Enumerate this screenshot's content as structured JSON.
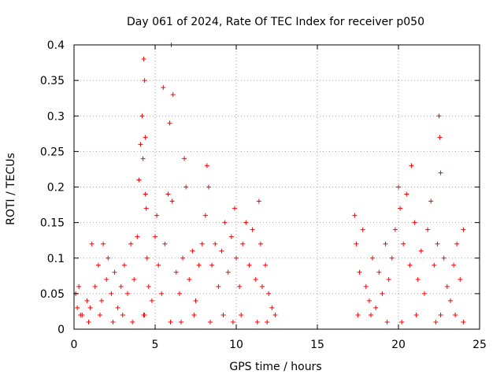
{
  "chart_data": {
    "type": "scatter",
    "title": "Day 061 of 2024, Rate Of TEC Index for receiver p050",
    "xlabel": "GPS time / hours",
    "ylabel": "ROTI / TECUs",
    "xlim": [
      0,
      25
    ],
    "ylim": [
      0,
      0.4
    ],
    "xticks": [
      0,
      5,
      10,
      15,
      20,
      25
    ],
    "xtick_labels": [
      "0",
      "5",
      "10",
      "15",
      "20",
      "25"
    ],
    "yticks": [
      0,
      0.05,
      0.1,
      0.15,
      0.2,
      0.25,
      0.3,
      0.35,
      0.4
    ],
    "ytick_labels": [
      "0",
      "0.05",
      "0.1",
      "0.15",
      "0.2",
      "0.25",
      "0.3",
      "0.35",
      "0.4"
    ],
    "grid": true,
    "marker": "+",
    "color": "#ff0000",
    "series": [
      {
        "name": "ROTI",
        "x": [
          0.1,
          0.2,
          0.3,
          0.5,
          0.8,
          1.0,
          1.1,
          1.3,
          1.5,
          1.7,
          1.8,
          2.0,
          2.1,
          2.3,
          2.5,
          2.7,
          2.9,
          3.1,
          3.3,
          3.5,
          3.7,
          3.9,
          4.0,
          4.1,
          4.2,
          4.25,
          4.3,
          4.35,
          4.4,
          4.45,
          4.5,
          4.6,
          4.8,
          5.0,
          5.1,
          5.2,
          5.4,
          5.6,
          5.8,
          5.9,
          6.0,
          6.1,
          6.3,
          6.5,
          6.7,
          6.8,
          6.9,
          7.1,
          7.3,
          7.5,
          7.7,
          7.9,
          8.1,
          8.2,
          8.3,
          8.5,
          8.7,
          8.9,
          9.1,
          9.3,
          9.5,
          9.7,
          9.9,
          10.0,
          10.2,
          10.4,
          10.6,
          10.8,
          11.0,
          11.2,
          11.4,
          11.5,
          11.6,
          11.8,
          12.0,
          12.2,
          12.4,
          17.3,
          17.4,
          17.6,
          17.8,
          18.0,
          18.2,
          18.4,
          18.6,
          18.8,
          19.0,
          19.2,
          19.4,
          19.6,
          19.8,
          20.0,
          20.1,
          20.3,
          20.5,
          20.7,
          20.8,
          21.0,
          21.2,
          21.4,
          21.6,
          21.8,
          22.0,
          22.2,
          22.4,
          22.5,
          22.6,
          22.8,
          23.0,
          23.2,
          23.4,
          23.6,
          23.8,
          24.0,
          0.4,
          0.9,
          1.6,
          2.4,
          3.0,
          3.6,
          4.3,
          4.35,
          4.4,
          5.5,
          5.95,
          6.05,
          6.6,
          7.4,
          8.4,
          9.2,
          9.8,
          10.3,
          11.3,
          11.9,
          17.5,
          18.3,
          19.3,
          20.2,
          21.1,
          22.3,
          22.55,
          22.6,
          23.5,
          24.0
        ],
        "y": [
          0.05,
          0.03,
          0.06,
          0.02,
          0.04,
          0.03,
          0.12,
          0.06,
          0.09,
          0.04,
          0.12,
          0.07,
          0.1,
          0.05,
          0.08,
          0.03,
          0.06,
          0.09,
          0.05,
          0.12,
          0.07,
          0.13,
          0.21,
          0.26,
          0.3,
          0.24,
          0.38,
          0.35,
          0.19,
          0.17,
          0.1,
          0.06,
          0.04,
          0.13,
          0.16,
          0.09,
          0.05,
          0.12,
          0.19,
          0.29,
          0.4,
          0.33,
          0.08,
          0.05,
          0.1,
          0.24,
          0.2,
          0.07,
          0.11,
          0.04,
          0.09,
          0.12,
          0.16,
          0.23,
          0.2,
          0.09,
          0.12,
          0.06,
          0.11,
          0.15,
          0.08,
          0.13,
          0.17,
          0.1,
          0.06,
          0.12,
          0.15,
          0.09,
          0.14,
          0.07,
          0.18,
          0.12,
          0.06,
          0.09,
          0.05,
          0.03,
          0.02,
          0.16,
          0.12,
          0.08,
          0.14,
          0.06,
          0.04,
          0.1,
          0.03,
          0.08,
          0.05,
          0.12,
          0.07,
          0.1,
          0.14,
          0.2,
          0.17,
          0.12,
          0.19,
          0.09,
          0.23,
          0.15,
          0.07,
          0.11,
          0.05,
          0.14,
          0.18,
          0.09,
          0.12,
          0.3,
          0.22,
          0.1,
          0.06,
          0.04,
          0.09,
          0.12,
          0.07,
          0.14,
          0.02,
          0.01,
          0.02,
          0.01,
          0.02,
          0.01,
          0.02,
          0.02,
          0.27,
          0.34,
          0.01,
          0.18,
          0.01,
          0.02,
          0.01,
          0.02,
          0.01,
          0.02,
          0.01,
          0.01,
          0.02,
          0.02,
          0.01,
          0.01,
          0.02,
          0.01,
          0.27,
          0.02,
          0.02,
          0.01
        ]
      }
    ]
  }
}
